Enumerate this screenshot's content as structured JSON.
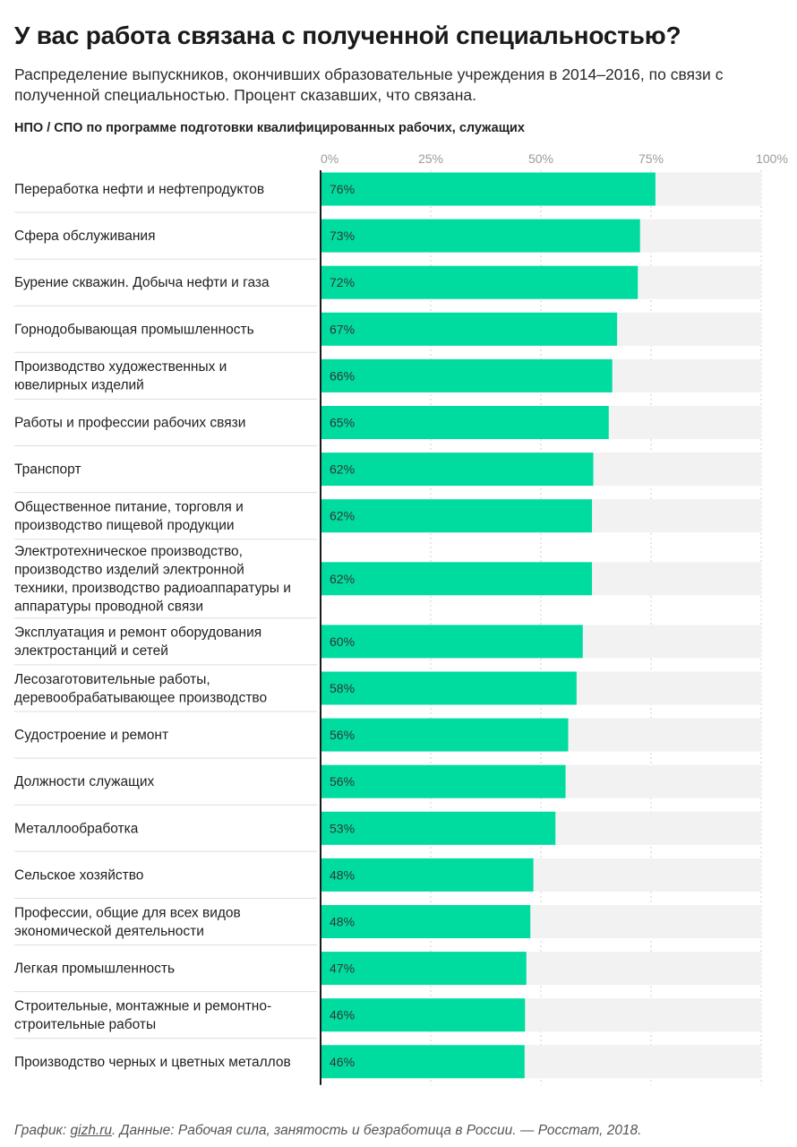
{
  "header": {
    "title": "У вас работа связана с полученной специальностью?",
    "subtitle": "Распределение выпускников, окончивших образовательные учреждения в 2014–2016, по связи с полученной специальностью. Процент сказавших, что связана.",
    "section": "НПО / СПО по программе подготовки квалифицированных рабочих, служащих"
  },
  "footer": {
    "prefix": "График: ",
    "link": "gizh.ru",
    "suffix": ". Данные: Рабочая сила, занятость и безработица в России. — Росстат, 2018."
  },
  "colors": {
    "bar": "#00dca0",
    "track": "#f2f2f2",
    "separator": "#dedede",
    "axis": "#1a1a1a",
    "gridline": "#cfcfcf",
    "tick": "#9a9a9a"
  },
  "chart_data": {
    "type": "bar",
    "orientation": "horizontal",
    "title": "НПО / СПО по программе подготовки квалифицированных рабочих, служащих",
    "xlim": [
      0,
      100
    ],
    "ticks": [
      "0%",
      "25%",
      "50%",
      "75%",
      "100%"
    ],
    "tick_values": [
      0,
      25,
      50,
      75,
      100
    ],
    "categories": [
      "Переработка нефти и нефтепродуктов",
      "Сфера обслуживания",
      "Бурение скважин. Добыча нефти и газа",
      "Горнодобывающая промышленность",
      "Производство художественных и ювелирных изделий",
      "Работы и профессии рабочих связи",
      "Транспорт",
      "Общественное питание, торговля и производство пищевой продукции",
      "Электротехническое производство, производство изделий электронной техники, производство радиоаппаратуры и аппаратуры проводной связи",
      "Эксплуатация и ремонт оборудования электростанций и сетей",
      "Лесозаготовительные работы, деревообрабатывающее производство",
      "Судостроение и ремонт",
      "Должности служащих",
      "Металлообработка",
      "Сельское хозяйство",
      "Профессии, общие для всех видов экономической деятельности",
      "Легкая промышленность",
      "Строительные, монтажные и ремонтно-строительные работы",
      "Производство черных и цветных металлов"
    ],
    "category_lines": [
      [
        "Переработка нефти и нефтепродуктов"
      ],
      [
        "Сфера обслуживания"
      ],
      [
        "Бурение скважин. Добыча нефти и газа"
      ],
      [
        "Горнодобывающая промышленность"
      ],
      [
        "Производство художественных и",
        "ювелирных изделий"
      ],
      [
        "Работы и профессии рабочих связи"
      ],
      [
        "Транспорт"
      ],
      [
        "Общественное питание, торговля и",
        "производство пищевой продукции"
      ],
      [
        "Электротехническое производство,",
        "производство изделий электронной",
        "техники, производство радиоаппаратуры и",
        "аппаратуры проводной связи"
      ],
      [
        "Эксплуатация и ремонт оборудования",
        "электростанций и сетей"
      ],
      [
        "Лесозаготовительные работы,",
        "деревообрабатывающее производство"
      ],
      [
        "Судостроение и ремонт"
      ],
      [
        "Должности служащих"
      ],
      [
        "Металлообработка"
      ],
      [
        "Сельское хозяйство"
      ],
      [
        "Профессии, общие для всех видов",
        "экономической деятельности"
      ],
      [
        "Легкая промышленность"
      ],
      [
        "Строительные, монтажные и ремонтно-",
        "строительные работы"
      ],
      [
        "Производство черных и цветных металлов"
      ]
    ],
    "values": [
      76,
      72.5,
      72,
      67.3,
      66.2,
      65.4,
      61.9,
      61.6,
      61.6,
      59.5,
      58.1,
      56.2,
      55.6,
      53.3,
      48.3,
      47.6,
      46.7,
      46.4,
      46.3
    ],
    "labels": [
      "76%",
      "73%",
      "72%",
      "67%",
      "66%",
      "65%",
      "62%",
      "62%",
      "62%",
      "60%",
      "58%",
      "56%",
      "56%",
      "53%",
      "48%",
      "48%",
      "47%",
      "46%",
      "46%"
    ]
  }
}
